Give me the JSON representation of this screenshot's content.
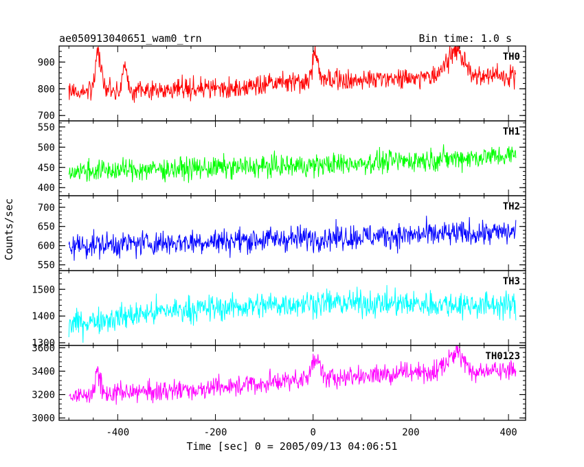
{
  "header": {
    "title": "ae050913040651_wam0_trn",
    "bin_time": "Bin time: 1.0 s"
  },
  "chart_data": {
    "type": "line",
    "xlabel": "Time [sec] 0 = 2005/09/13 04:06:51",
    "ylabel": "Counts/sec",
    "xlim": [
      -520,
      435
    ],
    "x_range": [
      -500,
      415
    ],
    "x_step": 1.0,
    "x_ticks": [
      -400,
      -200,
      0,
      200,
      400
    ],
    "grid": false,
    "panels": [
      {
        "name": "TH0",
        "color": "#ff0000",
        "ylim": [
          680,
          960
        ],
        "y_ticks": [
          700,
          800,
          900
        ],
        "trend": [
          [
            -500,
            790
          ],
          [
            -200,
            800
          ],
          [
            0,
            830
          ],
          [
            200,
            840
          ],
          [
            415,
            850
          ]
        ],
        "noise": 35,
        "bursts": [
          {
            "x": -440,
            "peak": 960,
            "width": 8
          },
          {
            "x": -385,
            "peak": 890,
            "width": 6
          },
          {
            "x": 5,
            "peak": 940,
            "width": 8
          },
          {
            "x": 290,
            "peak": 960,
            "width": 25
          }
        ]
      },
      {
        "name": "TH1",
        "color": "#00ff00",
        "ylim": [
          380,
          565
        ],
        "y_ticks": [
          400,
          450,
          500,
          550
        ],
        "trend": [
          [
            -500,
            440
          ],
          [
            0,
            455
          ],
          [
            415,
            480
          ]
        ],
        "noise": 25,
        "bursts": []
      },
      {
        "name": "TH2",
        "color": "#0000ff",
        "ylim": [
          535,
          730
        ],
        "y_ticks": [
          550,
          600,
          650,
          700
        ],
        "trend": [
          [
            -500,
            600
          ],
          [
            0,
            620
          ],
          [
            415,
            635
          ]
        ],
        "noise": 30,
        "bursts": []
      },
      {
        "name": "TH3",
        "color": "#00ffff",
        "ylim": [
          1290,
          1570
        ],
        "y_ticks": [
          1300,
          1400,
          1500
        ],
        "trend": [
          [
            -500,
            1370
          ],
          [
            -300,
            1420
          ],
          [
            0,
            1450
          ],
          [
            415,
            1440
          ]
        ],
        "noise": 45,
        "bursts": []
      },
      {
        "name": "TH0123",
        "color": "#ff00ff",
        "ylim": [
          2980,
          3620
        ],
        "y_ticks": [
          3000,
          3200,
          3400,
          3600
        ],
        "trend": [
          [
            -500,
            3180
          ],
          [
            -200,
            3260
          ],
          [
            0,
            3340
          ],
          [
            200,
            3390
          ],
          [
            415,
            3400
          ]
        ],
        "noise": 80,
        "bursts": [
          {
            "x": -440,
            "peak": 3420,
            "width": 8
          },
          {
            "x": 5,
            "peak": 3560,
            "width": 10
          },
          {
            "x": 290,
            "peak": 3580,
            "width": 25
          }
        ]
      }
    ]
  }
}
